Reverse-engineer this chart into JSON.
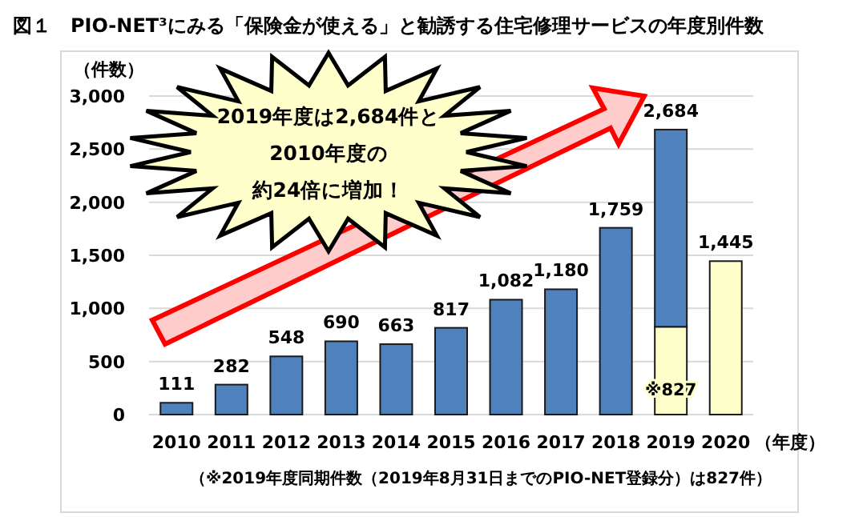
{
  "chart_data": {
    "type": "bar",
    "stacked": true,
    "title": "図１　PIO-NET³にみる「保険金が使える」と勧誘する住宅修理サービスの年度別件数",
    "ylabel": "（件数）",
    "xlabel": "（年度）",
    "categories": [
      "2010",
      "2011",
      "2012",
      "2013",
      "2014",
      "2015",
      "2016",
      "2017",
      "2018",
      "2019",
      "2020"
    ],
    "series": [
      {
        "color": "#ffffcc",
        "values": [
          null,
          null,
          null,
          null,
          null,
          null,
          null,
          null,
          null,
          827,
          1445
        ],
        "value_labels": [
          null,
          null,
          null,
          null,
          null,
          null,
          null,
          null,
          null,
          "※827",
          null
        ]
      },
      {
        "color": "#4f81bd",
        "values": [
          111,
          282,
          548,
          690,
          663,
          817,
          1082,
          1180,
          1759,
          1857,
          null
        ]
      }
    ],
    "totals": [
      "111",
      "282",
      "548",
      "690",
      "663",
      "817",
      "1,082",
      "1,180",
      "1,759",
      "2,684",
      "1,445"
    ],
    "ylim": [
      0,
      3000
    ],
    "yticks": [
      {
        "value": 0,
        "label": "0"
      },
      {
        "value": 500,
        "label": "500"
      },
      {
        "value": 1000,
        "label": "1,000"
      },
      {
        "value": 1500,
        "label": "1,500"
      },
      {
        "value": 2000,
        "label": "2,000"
      },
      {
        "value": 2500,
        "label": "2,500"
      },
      {
        "value": 3000,
        "label": "3,000"
      }
    ],
    "grid": "y",
    "annotations": [
      "2019年度は2,684件と",
      "2010年度の",
      "約24倍に増加！",
      "（※2019年度同期件数（2019年8月31日までのPIO-NET登録分）は827件）"
    ]
  }
}
